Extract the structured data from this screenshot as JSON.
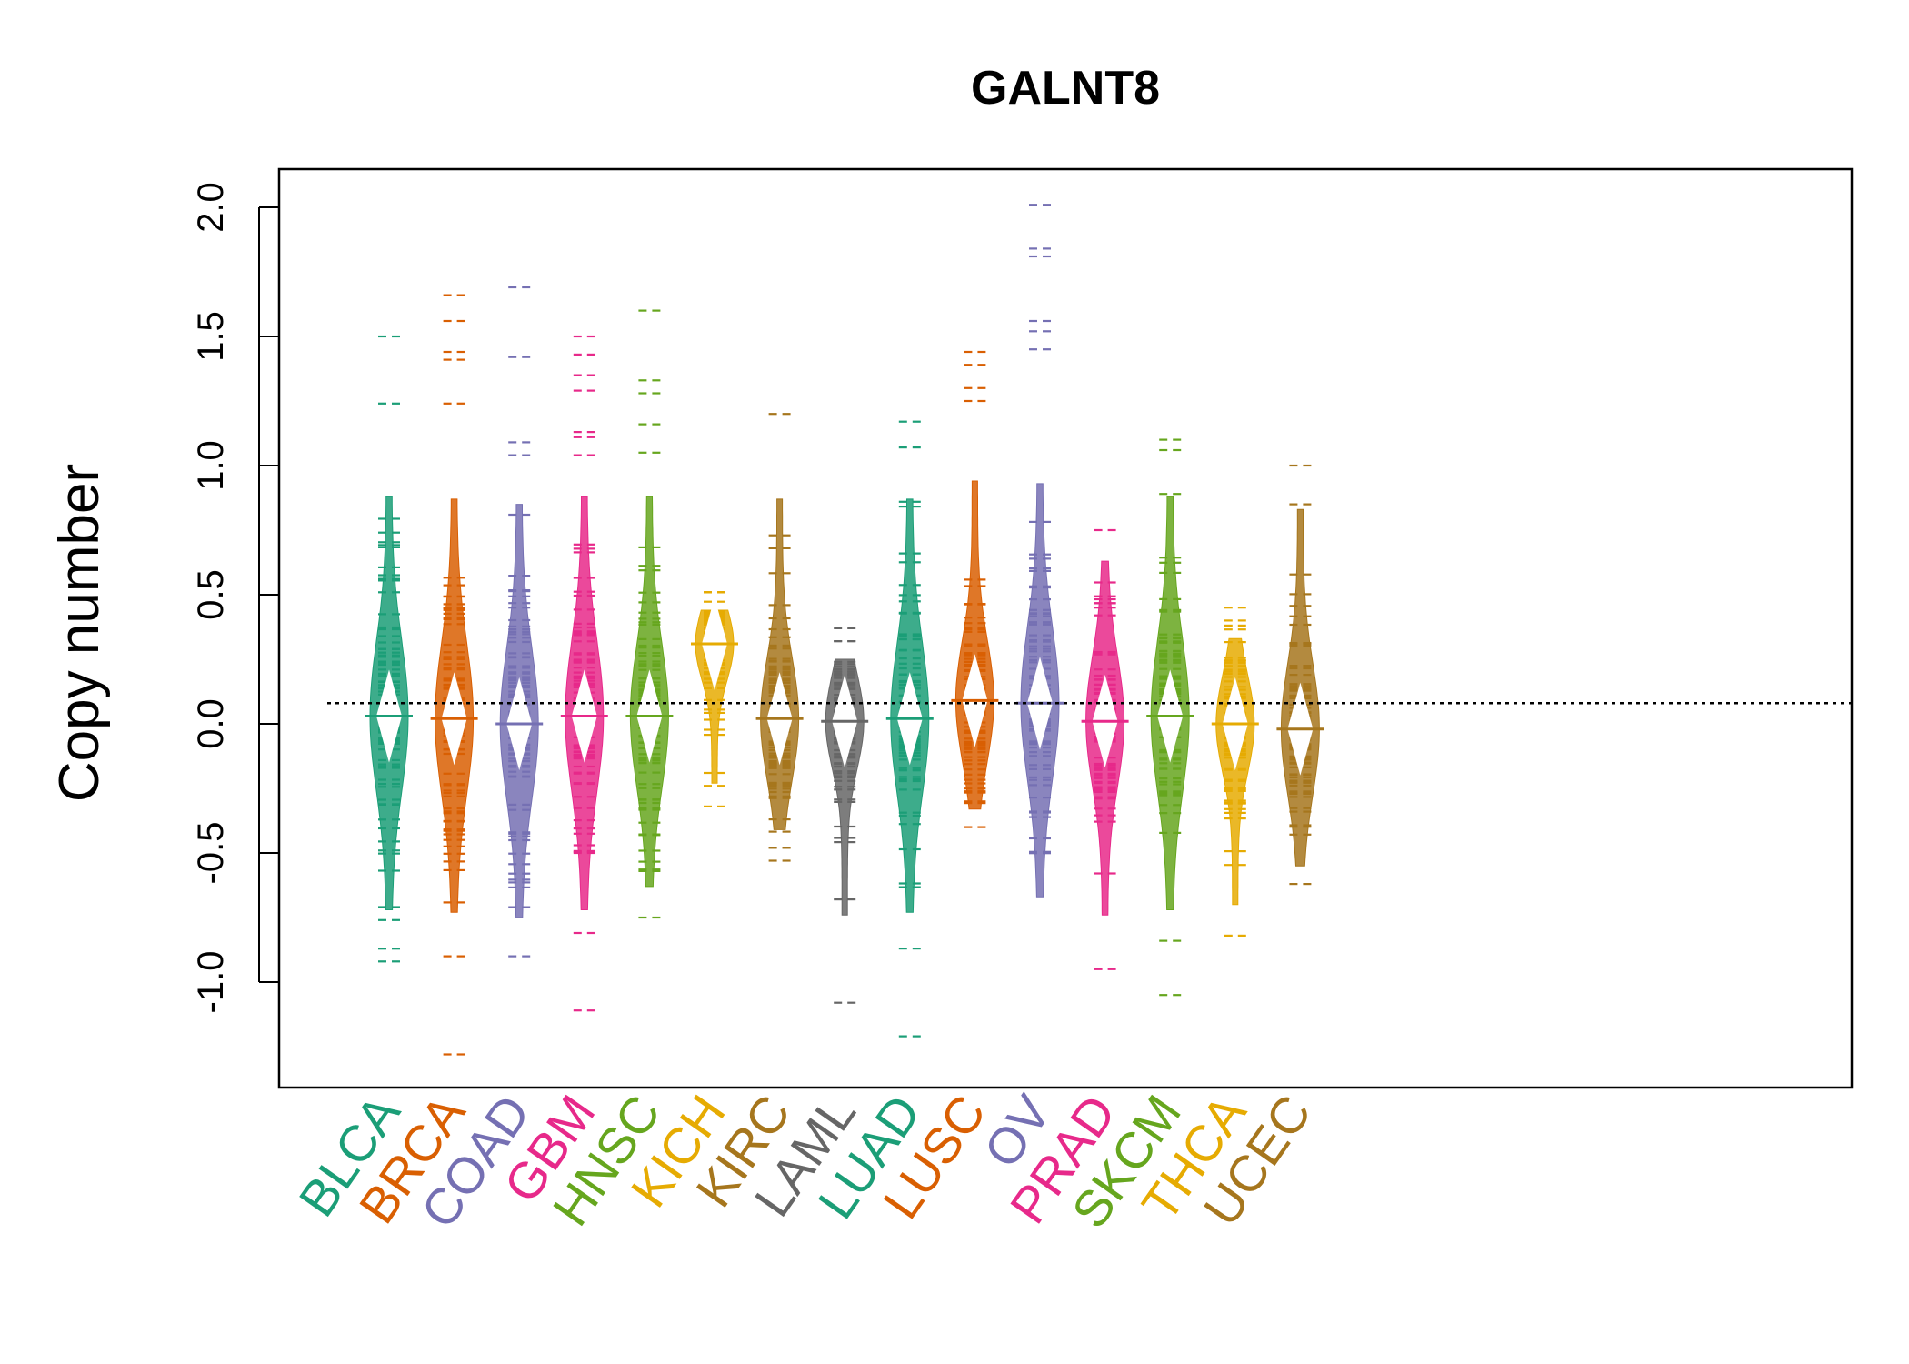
{
  "chart_data": {
    "type": "beanplot",
    "title": "GALNT8",
    "xlabel": "",
    "ylabel": "Copy number",
    "ylim": [
      -1.42,
      2.15
    ],
    "yticks": [
      "-1.0",
      "-0.5",
      "0.0",
      "0.5",
      "1.0",
      "1.5",
      "2.0"
    ],
    "reference_line": 0.08,
    "categories": [
      "BLCA",
      "BRCA",
      "COAD",
      "GBM",
      "HNSC",
      "KICH",
      "KIRC",
      "LAML",
      "LUAD",
      "LUSC",
      "OV",
      "PRAD",
      "SKCM",
      "THCA",
      "UCEC"
    ],
    "colors": [
      "#1B9E77",
      "#D95F02",
      "#7570B3",
      "#E7298A",
      "#66A61E",
      "#E6AB02",
      "#A6761D",
      "#666666",
      "#1B9E77",
      "#D95F02",
      "#7570B3",
      "#E7298A",
      "#66A61E",
      "#E6AB02",
      "#A6761D"
    ],
    "series": [
      {
        "median": 0.03,
        "min": -0.92,
        "max": 1.5,
        "outliers": [
          1.5,
          1.24,
          -0.92,
          -0.87,
          -0.76
        ]
      },
      {
        "median": 0.02,
        "min": -1.28,
        "max": 1.66,
        "outliers": [
          1.66,
          1.56,
          1.44,
          1.41,
          1.24,
          -0.9,
          -1.28
        ]
      },
      {
        "median": 0.0,
        "min": -0.9,
        "max": 1.69,
        "outliers": [
          1.69,
          1.42,
          1.09,
          1.04,
          0.81,
          -0.9,
          -0.71,
          -0.58
        ]
      },
      {
        "median": 0.03,
        "min": -1.11,
        "max": 1.5,
        "outliers": [
          1.5,
          1.43,
          1.35,
          1.29,
          1.13,
          1.11,
          1.04,
          -0.81,
          -1.11
        ]
      },
      {
        "median": 0.03,
        "min": -0.75,
        "max": 1.6,
        "outliers": [
          1.6,
          1.33,
          1.28,
          1.16,
          1.05,
          -0.57,
          -0.75
        ]
      },
      {
        "median": 0.31,
        "min": -0.35,
        "max": 0.56,
        "outliers": [
          -0.19,
          -0.24,
          -0.32
        ]
      },
      {
        "median": 0.02,
        "min": -0.53,
        "max": 1.2,
        "outliers": [
          1.2,
          0.73,
          0.68,
          -0.37,
          -0.53
        ]
      },
      {
        "median": 0.01,
        "min": -1.08,
        "max": 0.37,
        "outliers": [
          0.37,
          0.24,
          -0.68,
          -1.08
        ]
      },
      {
        "median": 0.02,
        "min": -1.21,
        "max": 1.17,
        "outliers": [
          1.17,
          1.07,
          0.86,
          -0.87,
          -1.21
        ]
      },
      {
        "median": 0.09,
        "min": -0.45,
        "max": 1.44,
        "outliers": [
          1.44,
          1.39,
          1.3,
          1.25
        ]
      },
      {
        "median": 0.08,
        "min": -0.99,
        "max": 2.01,
        "outliers": [
          2.01,
          1.84,
          1.81,
          1.56,
          1.52,
          1.45
        ]
      },
      {
        "median": 0.01,
        "min": -0.95,
        "max": 0.75,
        "outliers": [
          0.75,
          0.42,
          -0.95
        ]
      },
      {
        "median": 0.03,
        "min": -1.05,
        "max": 1.1,
        "outliers": [
          1.1,
          1.06,
          0.89,
          -0.84,
          -1.05
        ]
      },
      {
        "median": 0.0,
        "min": -0.82,
        "max": 0.45,
        "outliers": [
          0.45,
          -0.82
        ]
      },
      {
        "median": -0.02,
        "min": -0.67,
        "max": 1.0,
        "outliers": [
          1.0,
          0.85
        ]
      }
    ]
  }
}
